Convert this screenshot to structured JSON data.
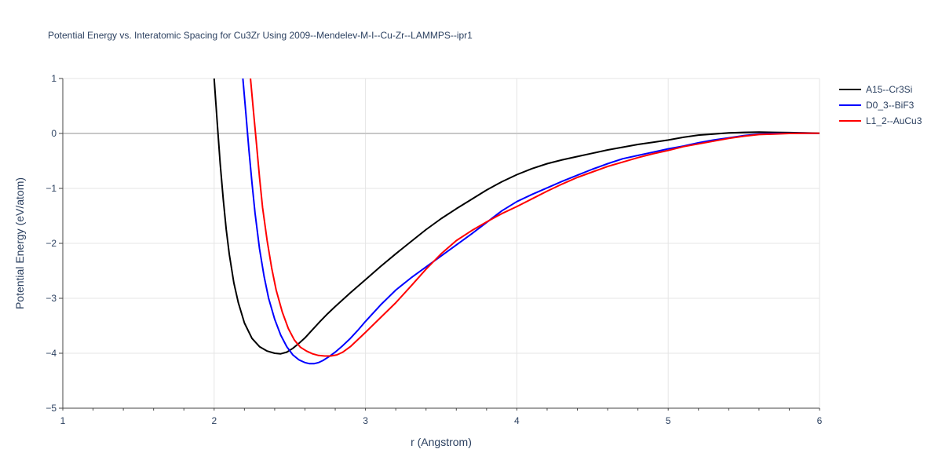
{
  "chart_data": {
    "type": "line",
    "title": "Potential Energy vs. Interatomic Spacing for Cu3Zr Using 2009--Mendelev-M-I--Cu-Zr--LAMMPS--ipr1",
    "xlabel": "r (Angstrom)",
    "ylabel": "Potential Energy (eV/atom)",
    "xlim": [
      1,
      6
    ],
    "ylim": [
      -5,
      1
    ],
    "xticks": [
      "1",
      "2",
      "3",
      "4",
      "5",
      "6"
    ],
    "yticks": [
      "1",
      "0",
      "−1",
      "−2",
      "−3",
      "−4",
      "−5"
    ],
    "grid": true,
    "legend_position": "top-right",
    "series": [
      {
        "name": "A15--Cr3Si",
        "color": "#000000",
        "x": [
          2.0,
          2.02,
          2.04,
          2.06,
          2.08,
          2.1,
          2.13,
          2.16,
          2.2,
          2.25,
          2.3,
          2.35,
          2.4,
          2.44,
          2.48,
          2.52,
          2.56,
          2.6,
          2.65,
          2.7,
          2.75,
          2.8,
          2.9,
          3.0,
          3.1,
          3.2,
          3.3,
          3.4,
          3.5,
          3.6,
          3.7,
          3.8,
          3.9,
          4.0,
          4.1,
          4.2,
          4.3,
          4.4,
          4.5,
          4.6,
          4.7,
          4.8,
          4.9,
          5.0,
          5.1,
          5.2,
          5.3,
          5.4,
          5.5,
          5.6,
          5.7,
          5.8,
          5.9,
          6.0
        ],
        "y": [
          1.0,
          0.2,
          -0.55,
          -1.2,
          -1.75,
          -2.2,
          -2.72,
          -3.08,
          -3.45,
          -3.73,
          -3.88,
          -3.96,
          -4.0,
          -4.01,
          -3.98,
          -3.91,
          -3.82,
          -3.72,
          -3.57,
          -3.42,
          -3.28,
          -3.15,
          -2.9,
          -2.66,
          -2.42,
          -2.19,
          -1.97,
          -1.75,
          -1.55,
          -1.37,
          -1.2,
          -1.03,
          -0.88,
          -0.75,
          -0.64,
          -0.55,
          -0.48,
          -0.42,
          -0.36,
          -0.3,
          -0.25,
          -0.2,
          -0.16,
          -0.12,
          -0.07,
          -0.03,
          -0.01,
          0.01,
          0.02,
          0.025,
          0.02,
          0.015,
          0.01,
          0.005
        ]
      },
      {
        "name": "D0_3--BiF3",
        "color": "#0000ff",
        "x": [
          2.19,
          2.21,
          2.23,
          2.25,
          2.27,
          2.3,
          2.33,
          2.36,
          2.4,
          2.44,
          2.48,
          2.52,
          2.56,
          2.6,
          2.63,
          2.66,
          2.69,
          2.72,
          2.76,
          2.8,
          2.85,
          2.9,
          2.95,
          3.0,
          3.1,
          3.2,
          3.3,
          3.4,
          3.5,
          3.6,
          3.7,
          3.8,
          3.9,
          4.0,
          4.1,
          4.2,
          4.3,
          4.4,
          4.5,
          4.6,
          4.7,
          4.8,
          4.9,
          5.0,
          5.1,
          5.2,
          5.3,
          5.4,
          5.5,
          5.6,
          5.7,
          5.8,
          5.9,
          6.0
        ],
        "y": [
          1.0,
          0.35,
          -0.3,
          -0.9,
          -1.45,
          -2.1,
          -2.6,
          -3.0,
          -3.38,
          -3.67,
          -3.88,
          -4.03,
          -4.12,
          -4.17,
          -4.19,
          -4.19,
          -4.17,
          -4.13,
          -4.06,
          -3.98,
          -3.86,
          -3.73,
          -3.58,
          -3.42,
          -3.12,
          -2.85,
          -2.63,
          -2.43,
          -2.23,
          -2.03,
          -1.83,
          -1.62,
          -1.41,
          -1.24,
          -1.11,
          -0.99,
          -0.87,
          -0.76,
          -0.65,
          -0.55,
          -0.46,
          -0.4,
          -0.34,
          -0.28,
          -0.23,
          -0.17,
          -0.12,
          -0.08,
          -0.04,
          -0.01,
          0.0,
          0.005,
          0.005,
          0.0
        ]
      },
      {
        "name": "L1_2--AuCu3",
        "color": "#ff0000",
        "x": [
          2.24,
          2.26,
          2.28,
          2.3,
          2.32,
          2.35,
          2.38,
          2.41,
          2.45,
          2.49,
          2.53,
          2.57,
          2.61,
          2.65,
          2.69,
          2.73,
          2.77,
          2.81,
          2.85,
          2.9,
          2.95,
          3.0,
          3.1,
          3.2,
          3.3,
          3.4,
          3.5,
          3.6,
          3.7,
          3.8,
          3.9,
          4.0,
          4.1,
          4.2,
          4.3,
          4.4,
          4.5,
          4.6,
          4.7,
          4.8,
          4.9,
          5.0,
          5.1,
          5.2,
          5.3,
          5.4,
          5.5,
          5.6,
          5.7,
          5.8,
          5.9,
          6.0
        ],
        "y": [
          1.0,
          0.4,
          -0.2,
          -0.8,
          -1.35,
          -1.95,
          -2.45,
          -2.85,
          -3.25,
          -3.55,
          -3.76,
          -3.89,
          -3.96,
          -4.01,
          -4.04,
          -4.05,
          -4.05,
          -4.03,
          -3.98,
          -3.88,
          -3.75,
          -3.62,
          -3.35,
          -3.08,
          -2.78,
          -2.47,
          -2.19,
          -1.95,
          -1.77,
          -1.61,
          -1.46,
          -1.33,
          -1.19,
          -1.05,
          -0.92,
          -0.8,
          -0.7,
          -0.6,
          -0.52,
          -0.44,
          -0.37,
          -0.31,
          -0.24,
          -0.19,
          -0.14,
          -0.09,
          -0.05,
          -0.02,
          -0.01,
          0.0,
          0.005,
          0.005
        ]
      }
    ]
  }
}
